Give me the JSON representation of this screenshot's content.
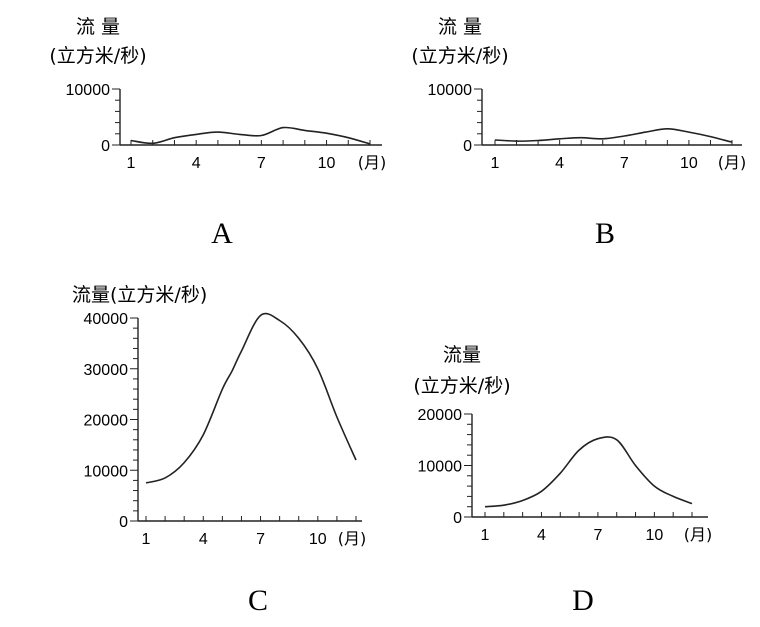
{
  "chart_data": [
    {
      "panel": "A",
      "type": "line",
      "y_title_line1": "流 量",
      "y_title_line2": "(立方米/秒)",
      "x_ticks": [
        1,
        4,
        7,
        10
      ],
      "x_unit": "(月)",
      "y_ticks": [
        0,
        10000
      ],
      "ylim": [
        0,
        10000
      ],
      "xlim": [
        1,
        12
      ],
      "series": [
        {
          "x": [
            1,
            2,
            3,
            4,
            5,
            6,
            7,
            8,
            9,
            10,
            11,
            12
          ],
          "values": [
            800,
            300,
            1300,
            1900,
            2300,
            1900,
            1700,
            3100,
            2600,
            2100,
            1300,
            200
          ]
        }
      ]
    },
    {
      "panel": "B",
      "type": "line",
      "y_title_line1": "流 量",
      "y_title_line2": "(立方米/秒)",
      "x_ticks": [
        1,
        4,
        7,
        10
      ],
      "x_unit": "(月)",
      "y_ticks": [
        0,
        10000
      ],
      "ylim": [
        0,
        10000
      ],
      "xlim": [
        1,
        12
      ],
      "series": [
        {
          "x": [
            1,
            2,
            3,
            4,
            5,
            6,
            7,
            8,
            9,
            10,
            11,
            12
          ],
          "values": [
            900,
            700,
            800,
            1100,
            1300,
            1100,
            1600,
            2300,
            2900,
            2300,
            1500,
            500
          ]
        }
      ]
    },
    {
      "panel": "C",
      "type": "line",
      "y_title": "流量(立方米/秒)",
      "x_ticks": [
        1,
        4,
        7,
        10
      ],
      "x_unit": "(月)",
      "y_ticks": [
        0,
        10000,
        20000,
        30000,
        40000
      ],
      "ylim": [
        0,
        40000
      ],
      "xlim": [
        1,
        12
      ],
      "series": [
        {
          "x": [
            1,
            2,
            3,
            4,
            5,
            5.5,
            6,
            7,
            8,
            9,
            10,
            11,
            12
          ],
          "values": [
            7500,
            8500,
            11500,
            17000,
            26000,
            29500,
            33500,
            40500,
            39500,
            36000,
            30000,
            20500,
            12000
          ]
        }
      ]
    },
    {
      "panel": "D",
      "type": "line",
      "y_title_line1": "流量",
      "y_title_line2": "(立方米/秒)",
      "x_ticks": [
        1,
        4,
        7,
        10
      ],
      "x_unit": "(月)",
      "y_ticks": [
        0,
        10000,
        20000
      ],
      "ylim": [
        0,
        20000
      ],
      "xlim": [
        1,
        12
      ],
      "series": [
        {
          "x": [
            1,
            2,
            3,
            4,
            5,
            6,
            7,
            8,
            9,
            10,
            11,
            12
          ],
          "values": [
            2000,
            2300,
            3200,
            5000,
            8500,
            13000,
            15200,
            15000,
            10000,
            6000,
            4000,
            2600
          ]
        }
      ]
    }
  ]
}
